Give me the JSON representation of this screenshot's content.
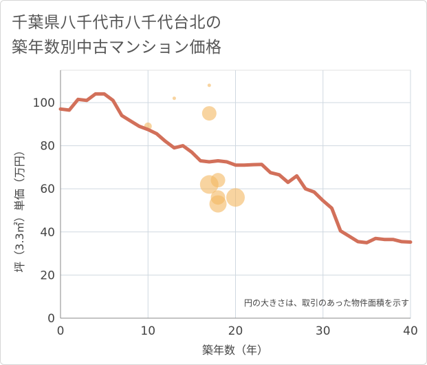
{
  "title_line1": "千葉県八千代市八千代台北の",
  "title_line2": "築年数別中古マンション価格",
  "chart_data": {
    "type": "line",
    "xlabel": "築年数（年）",
    "ylabel": "坪（3.3㎡）単価（万円）",
    "xlim": [
      0,
      40
    ],
    "ylim": [
      0,
      115
    ],
    "xticks": [
      0,
      10,
      20,
      30,
      40
    ],
    "yticks": [
      0,
      20,
      40,
      60,
      80,
      100
    ],
    "grid": true,
    "note": "円の大きさは、取引のあった物件面積を示す",
    "line_color": "#d2705a",
    "bubble_color": "#f3b860",
    "series": [
      {
        "x": [
          0,
          1,
          2,
          3,
          4,
          5,
          6,
          7,
          8,
          9,
          10,
          11,
          12,
          13,
          14,
          15,
          16,
          17,
          18,
          19,
          20,
          21,
          22,
          23,
          24,
          25,
          26,
          27,
          28,
          29,
          30,
          31,
          32,
          33,
          34,
          35,
          36,
          37,
          38,
          39,
          40
        ],
        "y": [
          97,
          96.5,
          101.5,
          101,
          104,
          104,
          101,
          94,
          91.5,
          89,
          87.5,
          85.5,
          82,
          79,
          80,
          77,
          73,
          72.5,
          73,
          72.5,
          71,
          71,
          71.2,
          71.3,
          67.5,
          66.5,
          63,
          66,
          60,
          58.5,
          54.5,
          51,
          40.5,
          38,
          35.5,
          35,
          37,
          36.5,
          36.5,
          35.5,
          35.3
        ]
      }
    ],
    "bubbles": [
      {
        "x": 10,
        "y": 89,
        "size": 4
      },
      {
        "x": 13,
        "y": 102,
        "size": 1
      },
      {
        "x": 17,
        "y": 108,
        "size": 1
      },
      {
        "x": 17,
        "y": 95,
        "size": 9
      },
      {
        "x": 17,
        "y": 62,
        "size": 12
      },
      {
        "x": 18,
        "y": 64,
        "size": 9
      },
      {
        "x": 18,
        "y": 56,
        "size": 9
      },
      {
        "x": 18,
        "y": 53,
        "size": 11
      },
      {
        "x": 20,
        "y": 56,
        "size": 12
      }
    ]
  }
}
